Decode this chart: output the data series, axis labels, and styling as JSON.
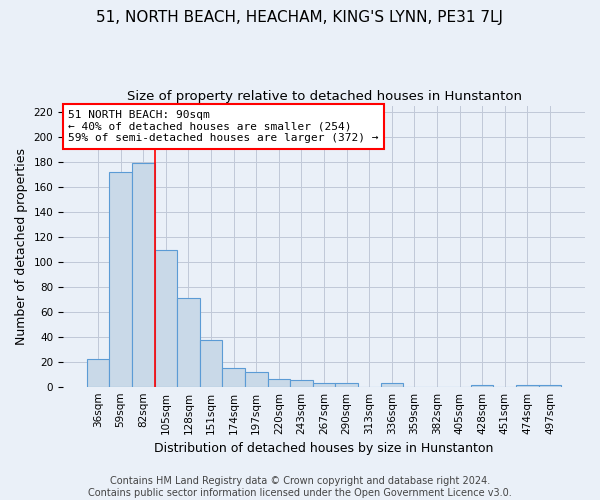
{
  "title": "51, NORTH BEACH, HEACHAM, KING'S LYNN, PE31 7LJ",
  "subtitle": "Size of property relative to detached houses in Hunstanton",
  "xlabel": "Distribution of detached houses by size in Hunstanton",
  "ylabel": "Number of detached properties",
  "footer_line1": "Contains HM Land Registry data © Crown copyright and database right 2024.",
  "footer_line2": "Contains public sector information licensed under the Open Government Licence v3.0.",
  "categories": [
    "36sqm",
    "59sqm",
    "82sqm",
    "105sqm",
    "128sqm",
    "151sqm",
    "174sqm",
    "197sqm",
    "220sqm",
    "243sqm",
    "267sqm",
    "290sqm",
    "313sqm",
    "336sqm",
    "359sqm",
    "382sqm",
    "405sqm",
    "428sqm",
    "451sqm",
    "474sqm",
    "497sqm"
  ],
  "values": [
    22,
    172,
    179,
    109,
    71,
    37,
    15,
    12,
    6,
    5,
    3,
    3,
    0,
    3,
    0,
    0,
    0,
    1,
    0,
    1,
    1
  ],
  "bar_color": "#c9d9e8",
  "bar_edge_color": "#5b9bd5",
  "bar_edge_width": 0.8,
  "grid_color": "#c0c8d8",
  "background_color": "#eaf0f8",
  "annotation_line1": "51 NORTH BEACH: 90sqm",
  "annotation_line2": "← 40% of detached houses are smaller (254)",
  "annotation_line3": "59% of semi-detached houses are larger (372) →",
  "annotation_box_color": "white",
  "annotation_box_edge_color": "red",
  "vline_index": 2,
  "vline_color": "red",
  "vline_linewidth": 1.2,
  "ylim": [
    0,
    225
  ],
  "yticks": [
    0,
    20,
    40,
    60,
    80,
    100,
    120,
    140,
    160,
    180,
    200,
    220
  ],
  "title_fontsize": 11,
  "subtitle_fontsize": 9.5,
  "xlabel_fontsize": 9,
  "ylabel_fontsize": 9,
  "tick_fontsize": 7.5,
  "annotation_fontsize": 8,
  "footer_fontsize": 7
}
